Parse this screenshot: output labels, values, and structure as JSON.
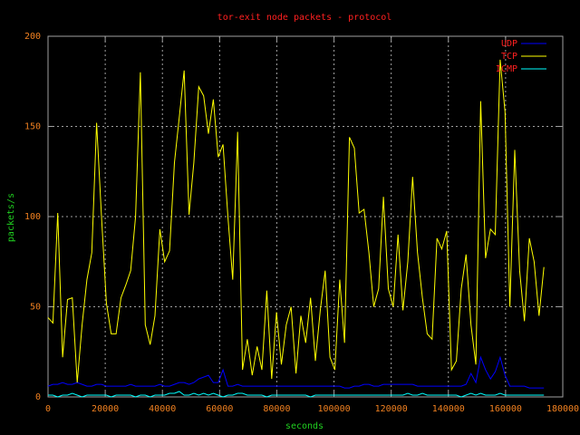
{
  "chart_data": {
    "type": "line",
    "title": "tor-exit node packets - protocol",
    "xlabel": "seconds",
    "ylabel": "packets/s",
    "x": [
      0,
      1700,
      3400,
      5100,
      6800,
      8500,
      10200,
      11900,
      13600,
      15300,
      17000,
      18700,
      20400,
      22100,
      23800,
      25500,
      27200,
      28900,
      30600,
      32300,
      34000,
      35700,
      37400,
      39100,
      40800,
      42500,
      44200,
      45900,
      47600,
      49300,
      51000,
      52700,
      54400,
      56100,
      57800,
      59500,
      61200,
      62900,
      64600,
      66300,
      68000,
      69700,
      71400,
      73100,
      74800,
      76500,
      78200,
      79900,
      81600,
      83300,
      85000,
      86700,
      88400,
      90100,
      91800,
      93500,
      95200,
      96900,
      98600,
      100300,
      102000,
      103700,
      105400,
      107100,
      108800,
      110500,
      112200,
      113900,
      115600,
      117300,
      119000,
      120700,
      122400,
      124100,
      125800,
      127500,
      129200,
      130900,
      132600,
      134300,
      136000,
      137700,
      139400,
      141100,
      142800,
      144500,
      146200,
      147900,
      149600,
      151300,
      153000,
      154700,
      156400,
      158100,
      159800,
      161500,
      163200,
      164900,
      166600,
      168300,
      170000,
      171700,
      173400
    ],
    "series": [
      {
        "name": "UDP",
        "color": "#0000ff",
        "values": [
          6,
          7,
          7,
          8,
          7,
          7,
          8,
          7,
          6,
          6,
          7,
          7,
          6,
          6,
          6,
          6,
          6,
          7,
          6,
          6,
          6,
          6,
          6,
          7,
          6,
          6,
          7,
          8,
          8,
          7,
          8,
          10,
          11,
          12,
          8,
          8,
          15,
          6,
          6,
          7,
          6,
          6,
          6,
          6,
          6,
          6,
          6,
          6,
          6,
          6,
          6,
          6,
          6,
          6,
          6,
          6,
          6,
          6,
          6,
          6,
          6,
          5,
          5,
          6,
          6,
          7,
          7,
          6,
          6,
          7,
          7,
          7,
          7,
          7,
          7,
          7,
          6,
          6,
          6,
          6,
          6,
          6,
          6,
          6,
          6,
          6,
          7,
          13,
          8,
          22,
          15,
          10,
          14,
          22,
          12,
          6,
          6,
          6,
          6,
          5,
          5,
          5,
          5
        ]
      },
      {
        "name": "TCP",
        "color": "#ffff00",
        "values": [
          44,
          41,
          102,
          22,
          54,
          55,
          8,
          40,
          65,
          80,
          152,
          100,
          52,
          35,
          35,
          55,
          62,
          70,
          100,
          180,
          40,
          29,
          45,
          93,
          75,
          81,
          130,
          155,
          181,
          101,
          130,
          172,
          167,
          146,
          165,
          133,
          140,
          100,
          65,
          147,
          15,
          32,
          12,
          28,
          15,
          59,
          10,
          47,
          18,
          40,
          50,
          13,
          45,
          30,
          55,
          20,
          48,
          70,
          22,
          15,
          65,
          30,
          144,
          138,
          102,
          104,
          80,
          50,
          60,
          111,
          60,
          50,
          90,
          48,
          75,
          122,
          80,
          55,
          35,
          32,
          88,
          82,
          92,
          15,
          20,
          60,
          79,
          40,
          18,
          164,
          77,
          93,
          90,
          187,
          158,
          50,
          137,
          70,
          42,
          88,
          75,
          45,
          72
        ]
      },
      {
        "name": "ICMP",
        "color": "#00ffff",
        "values": [
          1,
          1,
          0,
          1,
          1,
          2,
          1,
          0,
          1,
          1,
          1,
          1,
          1,
          0,
          1,
          1,
          1,
          1,
          0,
          1,
          1,
          0,
          1,
          1,
          1,
          2,
          2,
          3,
          1,
          1,
          2,
          1,
          2,
          1,
          2,
          1,
          0,
          1,
          1,
          2,
          2,
          1,
          1,
          1,
          1,
          0,
          1,
          1,
          1,
          1,
          1,
          1,
          1,
          1,
          0,
          1,
          1,
          1,
          1,
          1,
          1,
          1,
          1,
          1,
          1,
          1,
          1,
          1,
          1,
          1,
          1,
          1,
          1,
          1,
          2,
          1,
          1,
          2,
          1,
          1,
          1,
          1,
          1,
          1,
          1,
          0,
          1,
          2,
          1,
          2,
          1,
          1,
          1,
          2,
          1,
          1,
          1,
          1,
          1,
          1,
          1,
          1,
          1
        ]
      }
    ],
    "xlim": [
      0,
      180000
    ],
    "xticks": [
      0,
      20000,
      40000,
      60000,
      80000,
      100000,
      120000,
      140000,
      160000,
      180000
    ],
    "ylim": [
      0,
      200
    ],
    "yticks": [
      0,
      50,
      100,
      150,
      200
    ],
    "grid": true,
    "legend": "top-right"
  }
}
